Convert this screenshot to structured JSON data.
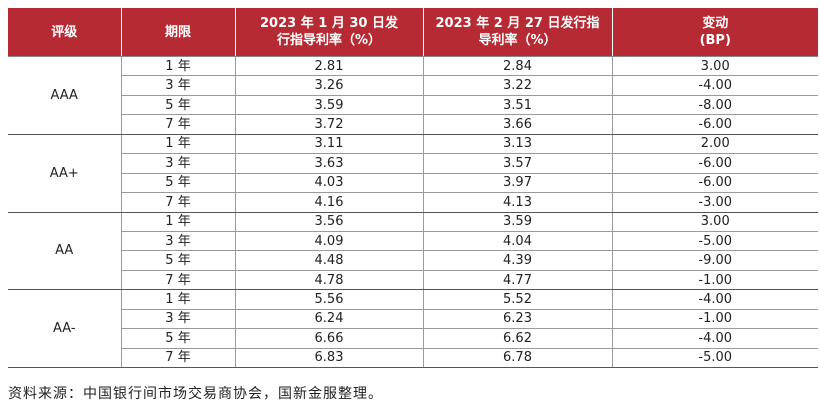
{
  "headers": [
    "评级",
    "期限",
    "2023 年 1 月 30 日发行指导利率（%）",
    "2023 年 2 月 27 日发行指导利率（%）",
    "变动\n(BP)"
  ],
  "header_lines": {
    "col3": [
      "2023 年 1 月 30 日发",
      "行指导利率（%）"
    ],
    "col4": [
      "2023 年 2 月 27 日发行指",
      "导利率（%）"
    ],
    "col5": [
      "变动",
      "(BP)"
    ]
  },
  "groups": [
    {
      "grade": "AAA",
      "rows": [
        {
          "term": "1 年",
          "jan": "2.81",
          "feb": "2.84",
          "chg": "3.00"
        },
        {
          "term": "3 年",
          "jan": "3.26",
          "feb": "3.22",
          "chg": "-4.00"
        },
        {
          "term": "5 年",
          "jan": "3.59",
          "feb": "3.51",
          "chg": "-8.00"
        },
        {
          "term": "7 年",
          "jan": "3.72",
          "feb": "3.66",
          "chg": "-6.00"
        }
      ]
    },
    {
      "grade": "AA+",
      "rows": [
        {
          "term": "1 年",
          "jan": "3.11",
          "feb": "3.13",
          "chg": "2.00"
        },
        {
          "term": "3 年",
          "jan": "3.63",
          "feb": "3.57",
          "chg": "-6.00"
        },
        {
          "term": "5 年",
          "jan": "4.03",
          "feb": "3.97",
          "chg": "-6.00"
        },
        {
          "term": "7 年",
          "jan": "4.16",
          "feb": "4.13",
          "chg": "-3.00"
        }
      ]
    },
    {
      "grade": "AA",
      "rows": [
        {
          "term": "1 年",
          "jan": "3.56",
          "feb": "3.59",
          "chg": "3.00"
        },
        {
          "term": "3 年",
          "jan": "4.09",
          "feb": "4.04",
          "chg": "-5.00"
        },
        {
          "term": "5 年",
          "jan": "4.48",
          "feb": "4.39",
          "chg": "-9.00"
        },
        {
          "term": "7 年",
          "jan": "4.78",
          "feb": "4.77",
          "chg": "-1.00"
        }
      ]
    },
    {
      "grade": "AA-",
      "rows": [
        {
          "term": "1 年",
          "jan": "5.56",
          "feb": "5.52",
          "chg": "-4.00"
        },
        {
          "term": "3 年",
          "jan": "6.24",
          "feb": "6.23",
          "chg": "-1.00"
        },
        {
          "term": "5 年",
          "jan": "6.66",
          "feb": "6.62",
          "chg": "-4.00"
        },
        {
          "term": "7 年",
          "jan": "6.83",
          "feb": "6.78",
          "chg": "-5.00"
        }
      ]
    }
  ],
  "source": "资料来源：中国银行间市场交易商协会，国新金服整理。",
  "colors": {
    "header_bg": "#b52a33",
    "header_text": "#ffffff"
  }
}
